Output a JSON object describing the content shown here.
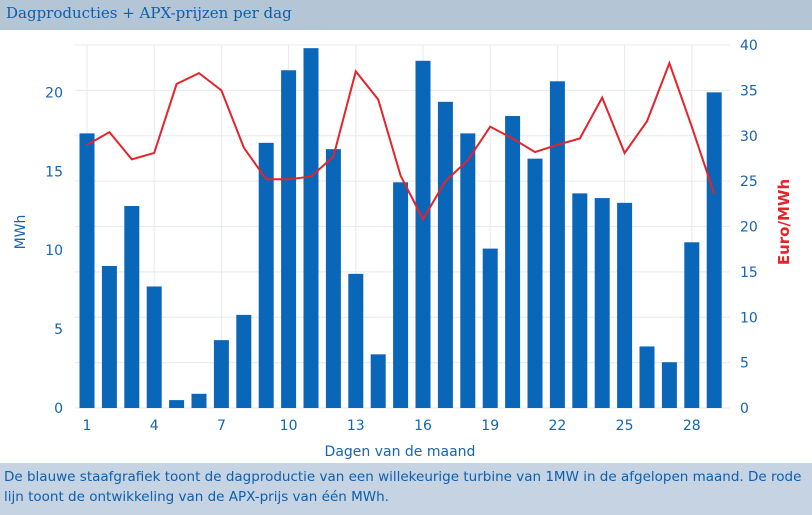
{
  "header": {
    "title": "Dagproducties + APX-prijzen per dag"
  },
  "footer": {
    "caption": "De blauwe staafgrafiek toont de dagproductie van een willekeurige turbine van 1MW in de afgelopen maand. De rode lijn toont de ontwikkeling van de APX-prijs van één MWh."
  },
  "chart_data": {
    "type": "bar+line",
    "xlabel": "Dagen van de maand",
    "ylabel_left": "MWh",
    "ylabel_right": "Euro/MWh",
    "grid": true,
    "ylim_left": [
      0,
      23
    ],
    "ylim_right": [
      0,
      40
    ],
    "yticks_left": [
      0,
      5,
      10,
      15,
      20
    ],
    "yticks_right": [
      0,
      5,
      10,
      15,
      20,
      25,
      30,
      35,
      40
    ],
    "xticks": [
      1,
      4,
      7,
      10,
      13,
      16,
      19,
      22,
      25,
      28
    ],
    "x": [
      1,
      2,
      3,
      4,
      5,
      6,
      7,
      8,
      9,
      10,
      11,
      12,
      13,
      14,
      15,
      16,
      17,
      18,
      19,
      20,
      21,
      22,
      23,
      24,
      25,
      26,
      27,
      28,
      29
    ],
    "series": [
      {
        "type": "bar",
        "axis": "left",
        "color": "#0a66b8",
        "values": [
          17.4,
          9.0,
          12.8,
          7.7,
          0.5,
          0.9,
          4.3,
          5.9,
          16.8,
          21.4,
          22.8,
          16.4,
          8.5,
          3.4,
          14.3,
          22.0,
          19.4,
          17.4,
          10.1,
          18.5,
          15.8,
          20.7,
          13.6,
          13.3,
          13.0,
          3.9,
          2.9,
          10.5,
          20.0
        ]
      },
      {
        "type": "line",
        "axis": "right",
        "color": "#e3242b",
        "values": [
          29.0,
          30.4,
          27.4,
          28.1,
          35.7,
          36.9,
          35.0,
          28.7,
          25.2,
          25.2,
          25.5,
          27.7,
          37.1,
          34.0,
          25.6,
          20.8,
          25.0,
          27.3,
          31.0,
          29.7,
          28.2,
          29.0,
          29.7,
          34.2,
          28.1,
          31.6,
          38.0,
          31.0,
          23.6
        ]
      }
    ]
  }
}
